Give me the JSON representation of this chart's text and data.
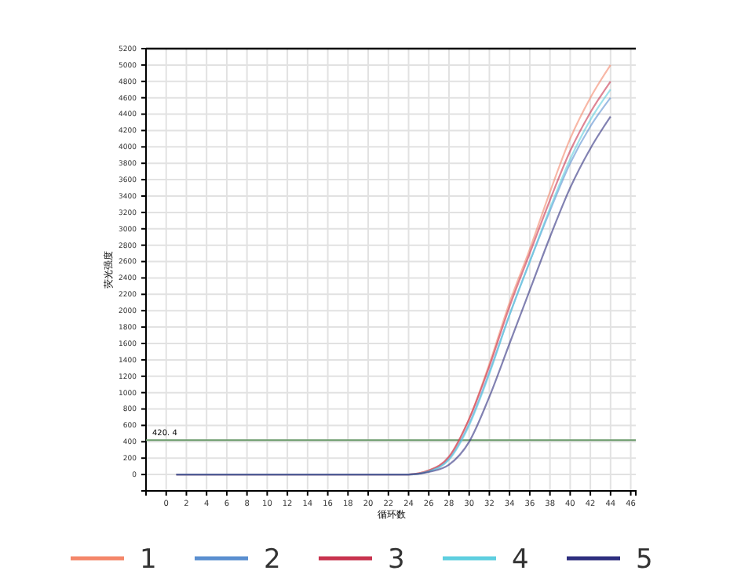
{
  "chart_data": {
    "type": "line",
    "xlabel": "循环数",
    "ylabel": "荧光强度",
    "x": [
      1,
      24,
      26,
      28,
      30,
      32,
      34,
      36,
      38,
      40,
      42,
      44
    ],
    "series": [
      {
        "name": "1",
        "color": "#f4876a",
        "values": [
          0,
          0,
          50,
          210,
          680,
          1350,
          2100,
          2750,
          3450,
          4100,
          4600,
          5000
        ]
      },
      {
        "name": "2",
        "color": "#5b8fd0",
        "values": [
          0,
          0,
          40,
          190,
          620,
          1250,
          1950,
          2600,
          3220,
          3800,
          4250,
          4600
        ]
      },
      {
        "name": "3",
        "color": "#c8344f",
        "values": [
          0,
          0,
          50,
          220,
          680,
          1320,
          2050,
          2700,
          3350,
          3950,
          4420,
          4800
        ]
      },
      {
        "name": "4",
        "color": "#5fcfe0",
        "values": [
          0,
          0,
          40,
          180,
          600,
          1230,
          1950,
          2600,
          3250,
          3850,
          4330,
          4700
        ]
      },
      {
        "name": "5",
        "color": "#2e2f7f",
        "values": [
          0,
          0,
          30,
          120,
          400,
          950,
          1600,
          2250,
          2900,
          3500,
          3980,
          4370
        ]
      }
    ],
    "xlim": [
      -2,
      46.5
    ],
    "xticks": [
      0,
      2,
      4,
      6,
      8,
      10,
      12,
      14,
      16,
      18,
      20,
      22,
      24,
      26,
      28,
      30,
      32,
      34,
      36,
      38,
      40,
      42,
      44,
      46
    ],
    "ylim": [
      -200,
      5200
    ],
    "yticks": [
      {
        "value": -200,
        "label": null
      },
      0,
      200,
      400,
      600,
      800,
      1000,
      1200,
      1400,
      1600,
      1800,
      2000,
      2200,
      2400,
      2600,
      2800,
      3000,
      3200,
      3400,
      3600,
      3800,
      4000,
      4200,
      4400,
      4600,
      4800,
      5000,
      5200
    ],
    "ref_lines": [
      {
        "axis": "y",
        "value": 420.4,
        "label": "420. 4",
        "color": "#6a9a6a"
      }
    ],
    "grid": true,
    "legend": "bottom",
    "marker": "none",
    "line_style": "solid"
  }
}
